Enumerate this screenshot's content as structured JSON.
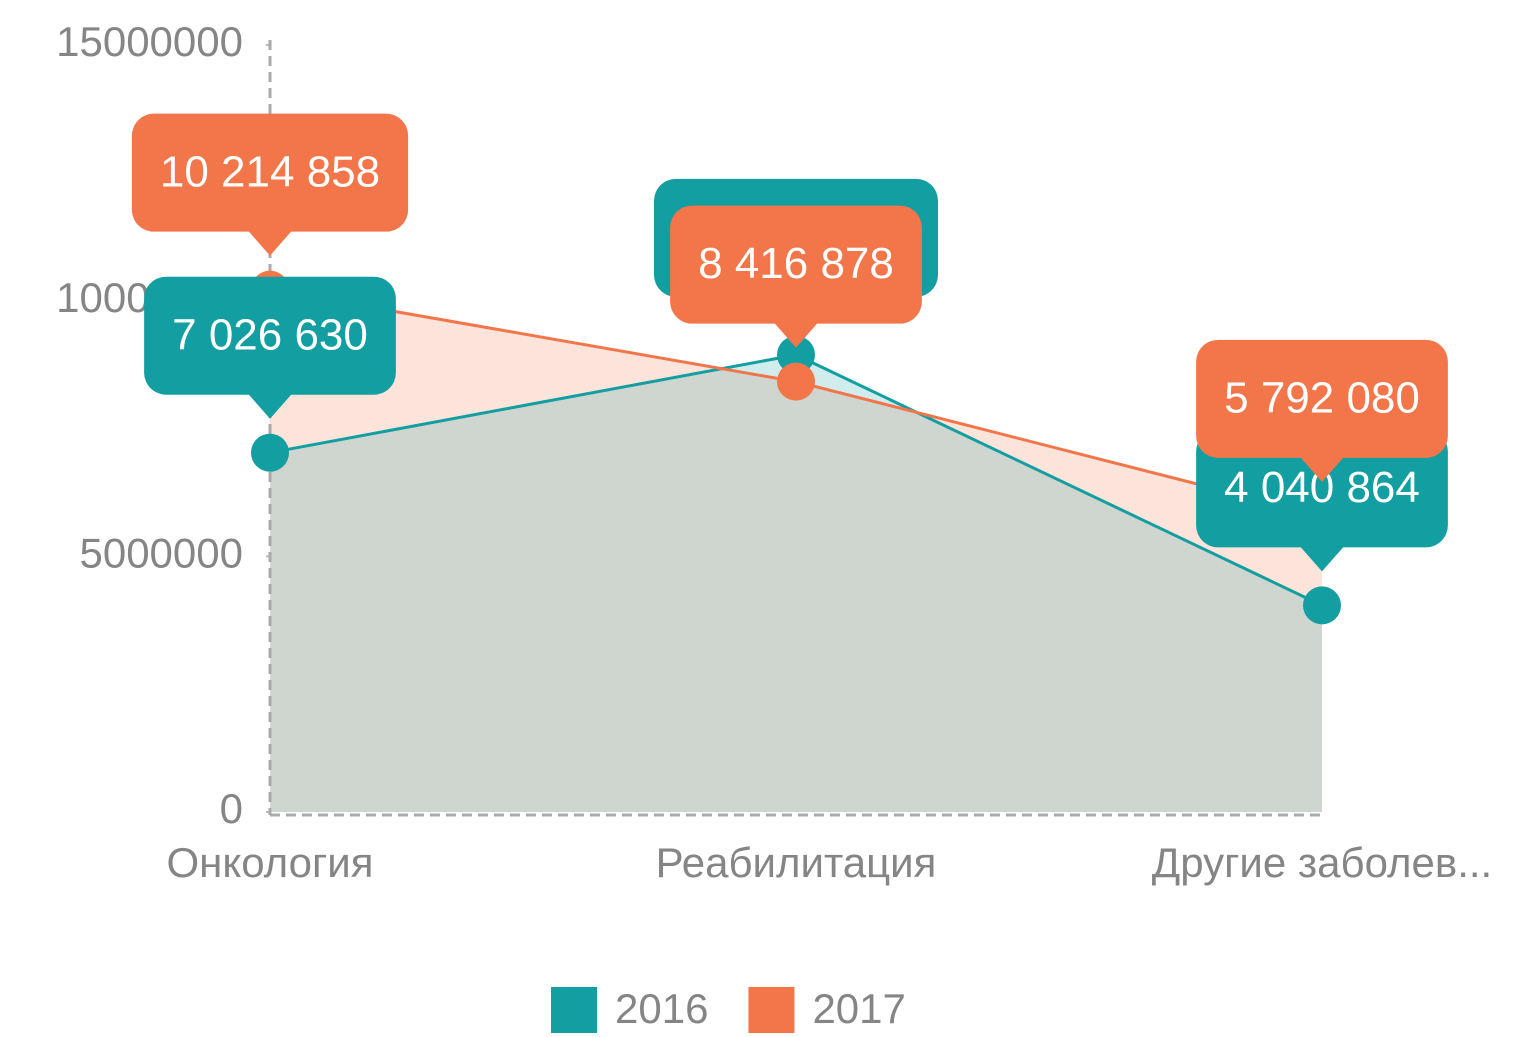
{
  "chart_data": {
    "type": "area",
    "categories": [
      "Онкология",
      "Реабилитация",
      "Другие заболев..."
    ],
    "series": [
      {
        "name": "2016",
        "color": "#139ea1",
        "values": [
          7026630,
          8940000,
          4040864
        ],
        "value_labels": [
          "7 026 630",
          null,
          "4 040 864"
        ]
      },
      {
        "name": "2017",
        "color": "#f3764a",
        "values": [
          10214858,
          8416878,
          5792080
        ],
        "value_labels": [
          "10 214 858",
          "8 416 878",
          "5 792 080"
        ]
      }
    ],
    "ylim": [
      0,
      15000000
    ],
    "yticks": [
      0,
      5000000,
      10000000,
      15000000
    ],
    "legend": "bottom"
  }
}
